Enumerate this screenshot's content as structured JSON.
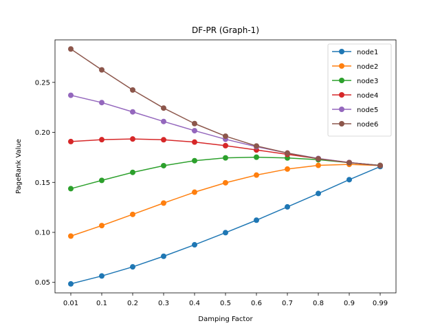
{
  "chart_data": {
    "type": "line",
    "title": "DF-PR (Graph-1)",
    "xlabel": "Damping Factor",
    "ylabel": "PageRank Value",
    "categories": [
      "0.01",
      "0.1",
      "0.2",
      "0.3",
      "0.4",
      "0.5",
      "0.6",
      "0.7",
      "0.8",
      "0.9",
      "0.99"
    ],
    "y_ticks": [
      0.05,
      0.1,
      0.15,
      0.2,
      0.25
    ],
    "y_tick_labels": [
      "0.05",
      "0.10",
      "0.15",
      "0.20",
      "0.25"
    ],
    "ylim": [
      0.0395,
      0.2925
    ],
    "grid": false,
    "legend_position": "top-right",
    "series": [
      {
        "name": "node1",
        "color": "#1f77b4",
        "values": [
          0.0485,
          0.0564,
          0.0655,
          0.0761,
          0.0876,
          0.0997,
          0.1122,
          0.1255,
          0.1389,
          0.1527,
          0.1658
        ]
      },
      {
        "name": "node2",
        "color": "#ff7f0e",
        "values": [
          0.0963,
          0.1068,
          0.118,
          0.1293,
          0.1402,
          0.1496,
          0.1573,
          0.1633,
          0.167,
          0.168,
          0.1669
        ]
      },
      {
        "name": "node3",
        "color": "#2ca02c",
        "values": [
          0.1437,
          0.152,
          0.16,
          0.1667,
          0.1717,
          0.1745,
          0.1752,
          0.1744,
          0.1727,
          0.1697,
          0.167
        ]
      },
      {
        "name": "node4",
        "color": "#d62728",
        "values": [
          0.1908,
          0.1927,
          0.1934,
          0.1926,
          0.1903,
          0.1867,
          0.1824,
          0.178,
          0.1737,
          0.1698,
          0.1669
        ]
      },
      {
        "name": "node5",
        "color": "#9467bd",
        "values": [
          0.2371,
          0.2298,
          0.2205,
          0.2109,
          0.2017,
          0.1931,
          0.1857,
          0.1793,
          0.1739,
          0.1699,
          0.1669
        ]
      },
      {
        "name": "node6",
        "color": "#8c564b",
        "values": [
          0.2834,
          0.2625,
          0.2424,
          0.2243,
          0.2088,
          0.1962,
          0.1864,
          0.1793,
          0.1736,
          0.1697,
          0.1668
        ]
      }
    ]
  }
}
